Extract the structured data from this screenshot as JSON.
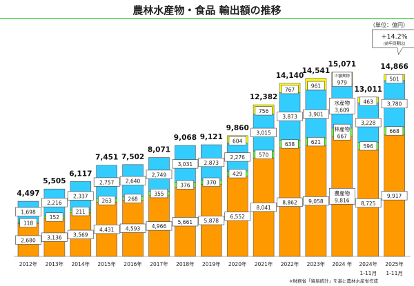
{
  "chart_data": {
    "type": "stacked-bar",
    "title": "農林水産物・食品 輸出額の推移",
    "unit": "（単位：億円）",
    "categories": [
      "2012年",
      "2013年",
      "2014年",
      "2015年",
      "2016年",
      "2017年",
      "2018年",
      "2019年",
      "2020年",
      "2021年",
      "2022年",
      "2023年",
      "2024 年",
      "2024年\n1-11月",
      "2025年\n1-11月"
    ],
    "totals": [
      4497,
      5505,
      6117,
      7451,
      7502,
      8071,
      9068,
      9121,
      9860,
      12382,
      14140,
      14541,
      15071,
      13011,
      14866
    ],
    "series": [
      {
        "name": "農産物",
        "color": "#FF9900",
        "values": [
          2680,
          3136,
          3569,
          4431,
          4593,
          4966,
          5661,
          5878,
          6552,
          8041,
          8862,
          9058,
          9816,
          8725,
          9917
        ]
      },
      {
        "name": "林産物",
        "color": "#66FF33",
        "values": [
          118,
          152,
          211,
          263,
          268,
          355,
          376,
          370,
          429,
          570,
          638,
          621,
          667,
          596,
          668
        ]
      },
      {
        "name": "水産物",
        "color": "#33CCFF",
        "values": [
          1698,
          2216,
          2337,
          2757,
          2640,
          2749,
          3031,
          2873,
          2276,
          3015,
          3873,
          3901,
          3609,
          3228,
          3780
        ]
      },
      {
        "name": "少額貨物",
        "color": "#FFFF00",
        "values": [
          null,
          null,
          null,
          null,
          null,
          null,
          null,
          null,
          604,
          756,
          767,
          961,
          979,
          463,
          501
        ]
      }
    ],
    "series_labels_shown_at": "2024 年",
    "callout": {
      "value": "+14.2%",
      "sub": "(前年同期比)"
    },
    "ylim": [
      0,
      15500
    ],
    "grid": false,
    "legend": "none"
  },
  "footnote": "※財務省「貿易統計」を基に農林水産省作成"
}
